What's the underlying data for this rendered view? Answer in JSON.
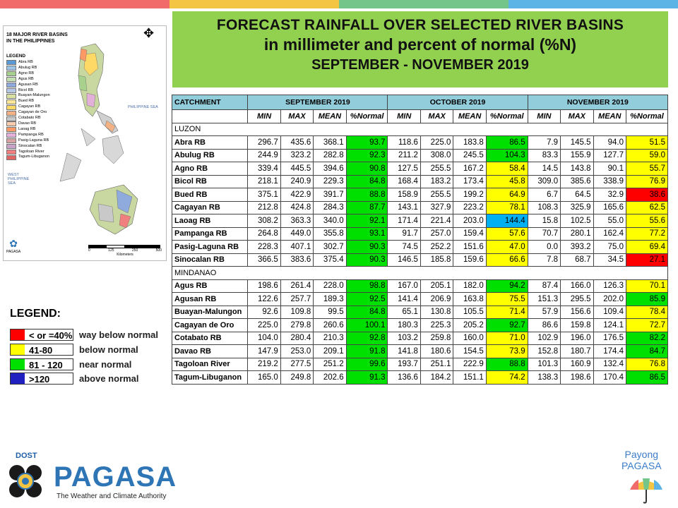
{
  "topbar_colors": [
    "#f26b6b",
    "#f4c542",
    "#73c58a",
    "#5bb3e6"
  ],
  "title": {
    "line1": "FORECAST RAINFALL OVER SELECTED RIVER BASINS",
    "line2": "in millimeter  and percent of normal (%N)",
    "line3": "SEPTEMBER - NOVEMBER 2019"
  },
  "map": {
    "title_line1": "18 MAJOR RIVER BASINS",
    "title_line2": "IN THE PHILIPPINES",
    "legend_title": "LEGEND",
    "legend_items": [
      {
        "label": "Abra RB",
        "color": "#5b9bd5"
      },
      {
        "label": "Abulug RB",
        "color": "#9dc3e6"
      },
      {
        "label": "Agno RB",
        "color": "#a9d18e"
      },
      {
        "label": "Agus RB",
        "color": "#c5e0b4"
      },
      {
        "label": "Agusan RB",
        "color": "#8faadc"
      },
      {
        "label": "Bicol RB",
        "color": "#b4c7e7"
      },
      {
        "label": "Buayan-Malungon",
        "color": "#d9e1a0"
      },
      {
        "label": "Bued RB",
        "color": "#ffe699"
      },
      {
        "label": "Cagayan RB",
        "color": "#ffd966"
      },
      {
        "label": "Cagayan de Oro",
        "color": "#f4b183"
      },
      {
        "label": "Cotabato RB",
        "color": "#c9c9c9"
      },
      {
        "label": "Davao RB",
        "color": "#f8cbad"
      },
      {
        "label": "Laoag RB",
        "color": "#ff9966"
      },
      {
        "label": "Pampanga RB",
        "color": "#e2b0d9"
      },
      {
        "label": "Pasig-Laguna RB",
        "color": "#d6a3a3"
      },
      {
        "label": "Sinocalan RB",
        "color": "#c8a2c8"
      },
      {
        "label": "Tagoloan River",
        "color": "#f08080"
      },
      {
        "label": "Tagum-Libuganon",
        "color": "#e06666"
      }
    ],
    "sea_east": "PHILIPPINE SEA",
    "sea_west": "WEST PHILIPPINE SEA",
    "agency_small": "PAGASA",
    "scale_ticks": [
      "0",
      "125",
      "250",
      "500"
    ],
    "scale_unit": "Kilometers"
  },
  "table": {
    "catchment_header": "CATCHMENT",
    "months": [
      "SEPTEMBER 2019",
      "OCTOBER 2019",
      "NOVEMBER 2019"
    ],
    "subheaders": [
      "MIN",
      "MAX",
      "MEAN",
      "%Normal"
    ],
    "regions": [
      {
        "name": "LUZON",
        "rows": [
          {
            "name": "Abra RB",
            "vals": [
              "296.7",
              "435.6",
              "368.1",
              "93.7",
              "118.6",
              "225.0",
              "183.8",
              "86.5",
              "7.9",
              "145.5",
              "94.0",
              "51.5"
            ],
            "cls": [
              "g",
              "g",
              "y"
            ]
          },
          {
            "name": "Abulug RB",
            "vals": [
              "244.9",
              "323.2",
              "282.8",
              "92.3",
              "211.2",
              "308.0",
              "245.5",
              "104.3",
              "83.3",
              "155.9",
              "127.7",
              "59.0"
            ],
            "cls": [
              "g",
              "g",
              "y"
            ]
          },
          {
            "name": "Agno RB",
            "vals": [
              "339.4",
              "445.5",
              "394.6",
              "90.8",
              "127.5",
              "255.5",
              "167.2",
              "58.4",
              "14.5",
              "143.8",
              "90.1",
              "55.7"
            ],
            "cls": [
              "g",
              "y",
              "y"
            ]
          },
          {
            "name": "Bicol RB",
            "vals": [
              "218.1",
              "240.9",
              "229.3",
              "84.8",
              "168.4",
              "183.2",
              "173.4",
              "45.8",
              "309.0",
              "385.6",
              "338.9",
              "76.9"
            ],
            "cls": [
              "g",
              "y",
              "y"
            ]
          },
          {
            "name": "Bued RB",
            "vals": [
              "375.1",
              "422.9",
              "391.7",
              "88.8",
              "158.9",
              "255.5",
              "199.2",
              "64.9",
              "6.7",
              "64.5",
              "32.9",
              "38.6"
            ],
            "cls": [
              "g",
              "y",
              "r"
            ]
          },
          {
            "name": "Cagayan RB",
            "vals": [
              "212.8",
              "424.8",
              "284.3",
              "87.7",
              "143.1",
              "327.9",
              "223.2",
              "78.1",
              "108.3",
              "325.9",
              "165.6",
              "62.5"
            ],
            "cls": [
              "g",
              "y",
              "y"
            ]
          },
          {
            "name": "Laoag RB",
            "vals": [
              "308.2",
              "363.3",
              "340.0",
              "92.1",
              "171.4",
              "221.4",
              "203.0",
              "144.4",
              "15.8",
              "102.5",
              "55.0",
              "55.6"
            ],
            "cls": [
              "g",
              "b",
              "y"
            ]
          },
          {
            "name": "Pampanga RB",
            "vals": [
              "264.8",
              "449.0",
              "355.8",
              "93.1",
              "91.7",
              "257.0",
              "159.4",
              "57.6",
              "70.7",
              "280.1",
              "162.4",
              "77.2"
            ],
            "cls": [
              "g",
              "y",
              "y"
            ]
          },
          {
            "name": "Pasig-Laguna RB",
            "vals": [
              "228.3",
              "407.1",
              "302.7",
              "90.3",
              "74.5",
              "252.2",
              "151.6",
              "47.0",
              "0.0",
              "393.2",
              "75.0",
              "69.4"
            ],
            "cls": [
              "g",
              "y",
              "y"
            ]
          },
          {
            "name": "Sinocalan RB",
            "vals": [
              "366.5",
              "383.6",
              "375.4",
              "90.3",
              "146.5",
              "185.8",
              "159.6",
              "66.6",
              "7.8",
              "68.7",
              "34.5",
              "27.1"
            ],
            "cls": [
              "g",
              "y",
              "r"
            ]
          }
        ]
      },
      {
        "name": "MINDANAO",
        "rows": [
          {
            "name": "Agus RB",
            "vals": [
              "198.6",
              "261.4",
              "228.0",
              "98.8",
              "167.0",
              "205.1",
              "182.0",
              "94.2",
              "87.4",
              "166.0",
              "126.3",
              "70.1"
            ],
            "cls": [
              "g",
              "g",
              "y"
            ]
          },
          {
            "name": "Agusan RB",
            "vals": [
              "122.6",
              "257.7",
              "189.3",
              "92.5",
              "141.4",
              "206.9",
              "163.8",
              "75.5",
              "151.3",
              "295.5",
              "202.0",
              "85.9"
            ],
            "cls": [
              "g",
              "y",
              "g"
            ]
          },
          {
            "name": "Buayan-Malungon",
            "vals": [
              "92.6",
              "109.8",
              "99.5",
              "84.8",
              "65.1",
              "130.8",
              "105.5",
              "71.4",
              "57.9",
              "156.6",
              "109.4",
              "78.4"
            ],
            "cls": [
              "g",
              "y",
              "y"
            ]
          },
          {
            "name": "Cagayan de Oro",
            "vals": [
              "225.0",
              "279.8",
              "260.6",
              "100.1",
              "180.3",
              "225.3",
              "205.2",
              "92.7",
              "86.6",
              "159.8",
              "124.1",
              "72.7"
            ],
            "cls": [
              "g",
              "g",
              "y"
            ]
          },
          {
            "name": "Cotabato RB",
            "vals": [
              "104.0",
              "280.4",
              "210.3",
              "92.8",
              "103.2",
              "259.8",
              "160.0",
              "71.0",
              "102.9",
              "196.0",
              "176.5",
              "82.2"
            ],
            "cls": [
              "g",
              "y",
              "g"
            ]
          },
          {
            "name": "Davao RB",
            "vals": [
              "147.9",
              "253.0",
              "209.1",
              "91.8",
              "141.8",
              "180.6",
              "154.5",
              "73.9",
              "152.8",
              "180.7",
              "174.4",
              "84.7"
            ],
            "cls": [
              "g",
              "y",
              "g"
            ]
          },
          {
            "name": "Tagoloan River",
            "vals": [
              "219.2",
              "277.5",
              "251.2",
              "99.6",
              "193.7",
              "251.1",
              "222.9",
              "88.8",
              "101.3",
              "160.9",
              "132.4",
              "76.8"
            ],
            "cls": [
              "g",
              "g",
              "y"
            ]
          },
          {
            "name": "Tagum-Libuganon",
            "vals": [
              "165.0",
              "249.8",
              "202.6",
              "91.3",
              "136.6",
              "184.2",
              "151.1",
              "74.2",
              "138.3",
              "198.6",
              "170.4",
              "86.5"
            ],
            "cls": [
              "g",
              "y",
              "g"
            ]
          }
        ]
      }
    ]
  },
  "legend": {
    "title": "LEGEND:",
    "items": [
      {
        "range": "< or =40%",
        "desc": "way below normal",
        "color": "#ff0000"
      },
      {
        "range": "41-80",
        "desc": "below normal",
        "color": "#ffff00"
      },
      {
        "range": "81 - 120",
        "desc": "near normal",
        "color": "#00e000"
      },
      {
        "range": ">120",
        "desc": "above normal",
        "color": "#2020c0"
      }
    ]
  },
  "footer": {
    "dost": "DOST",
    "pagasa": "PAGASA",
    "tagline": "The Weather and Climate Authority",
    "payong_line1": "Payong",
    "payong_line2": "PAGASA"
  }
}
